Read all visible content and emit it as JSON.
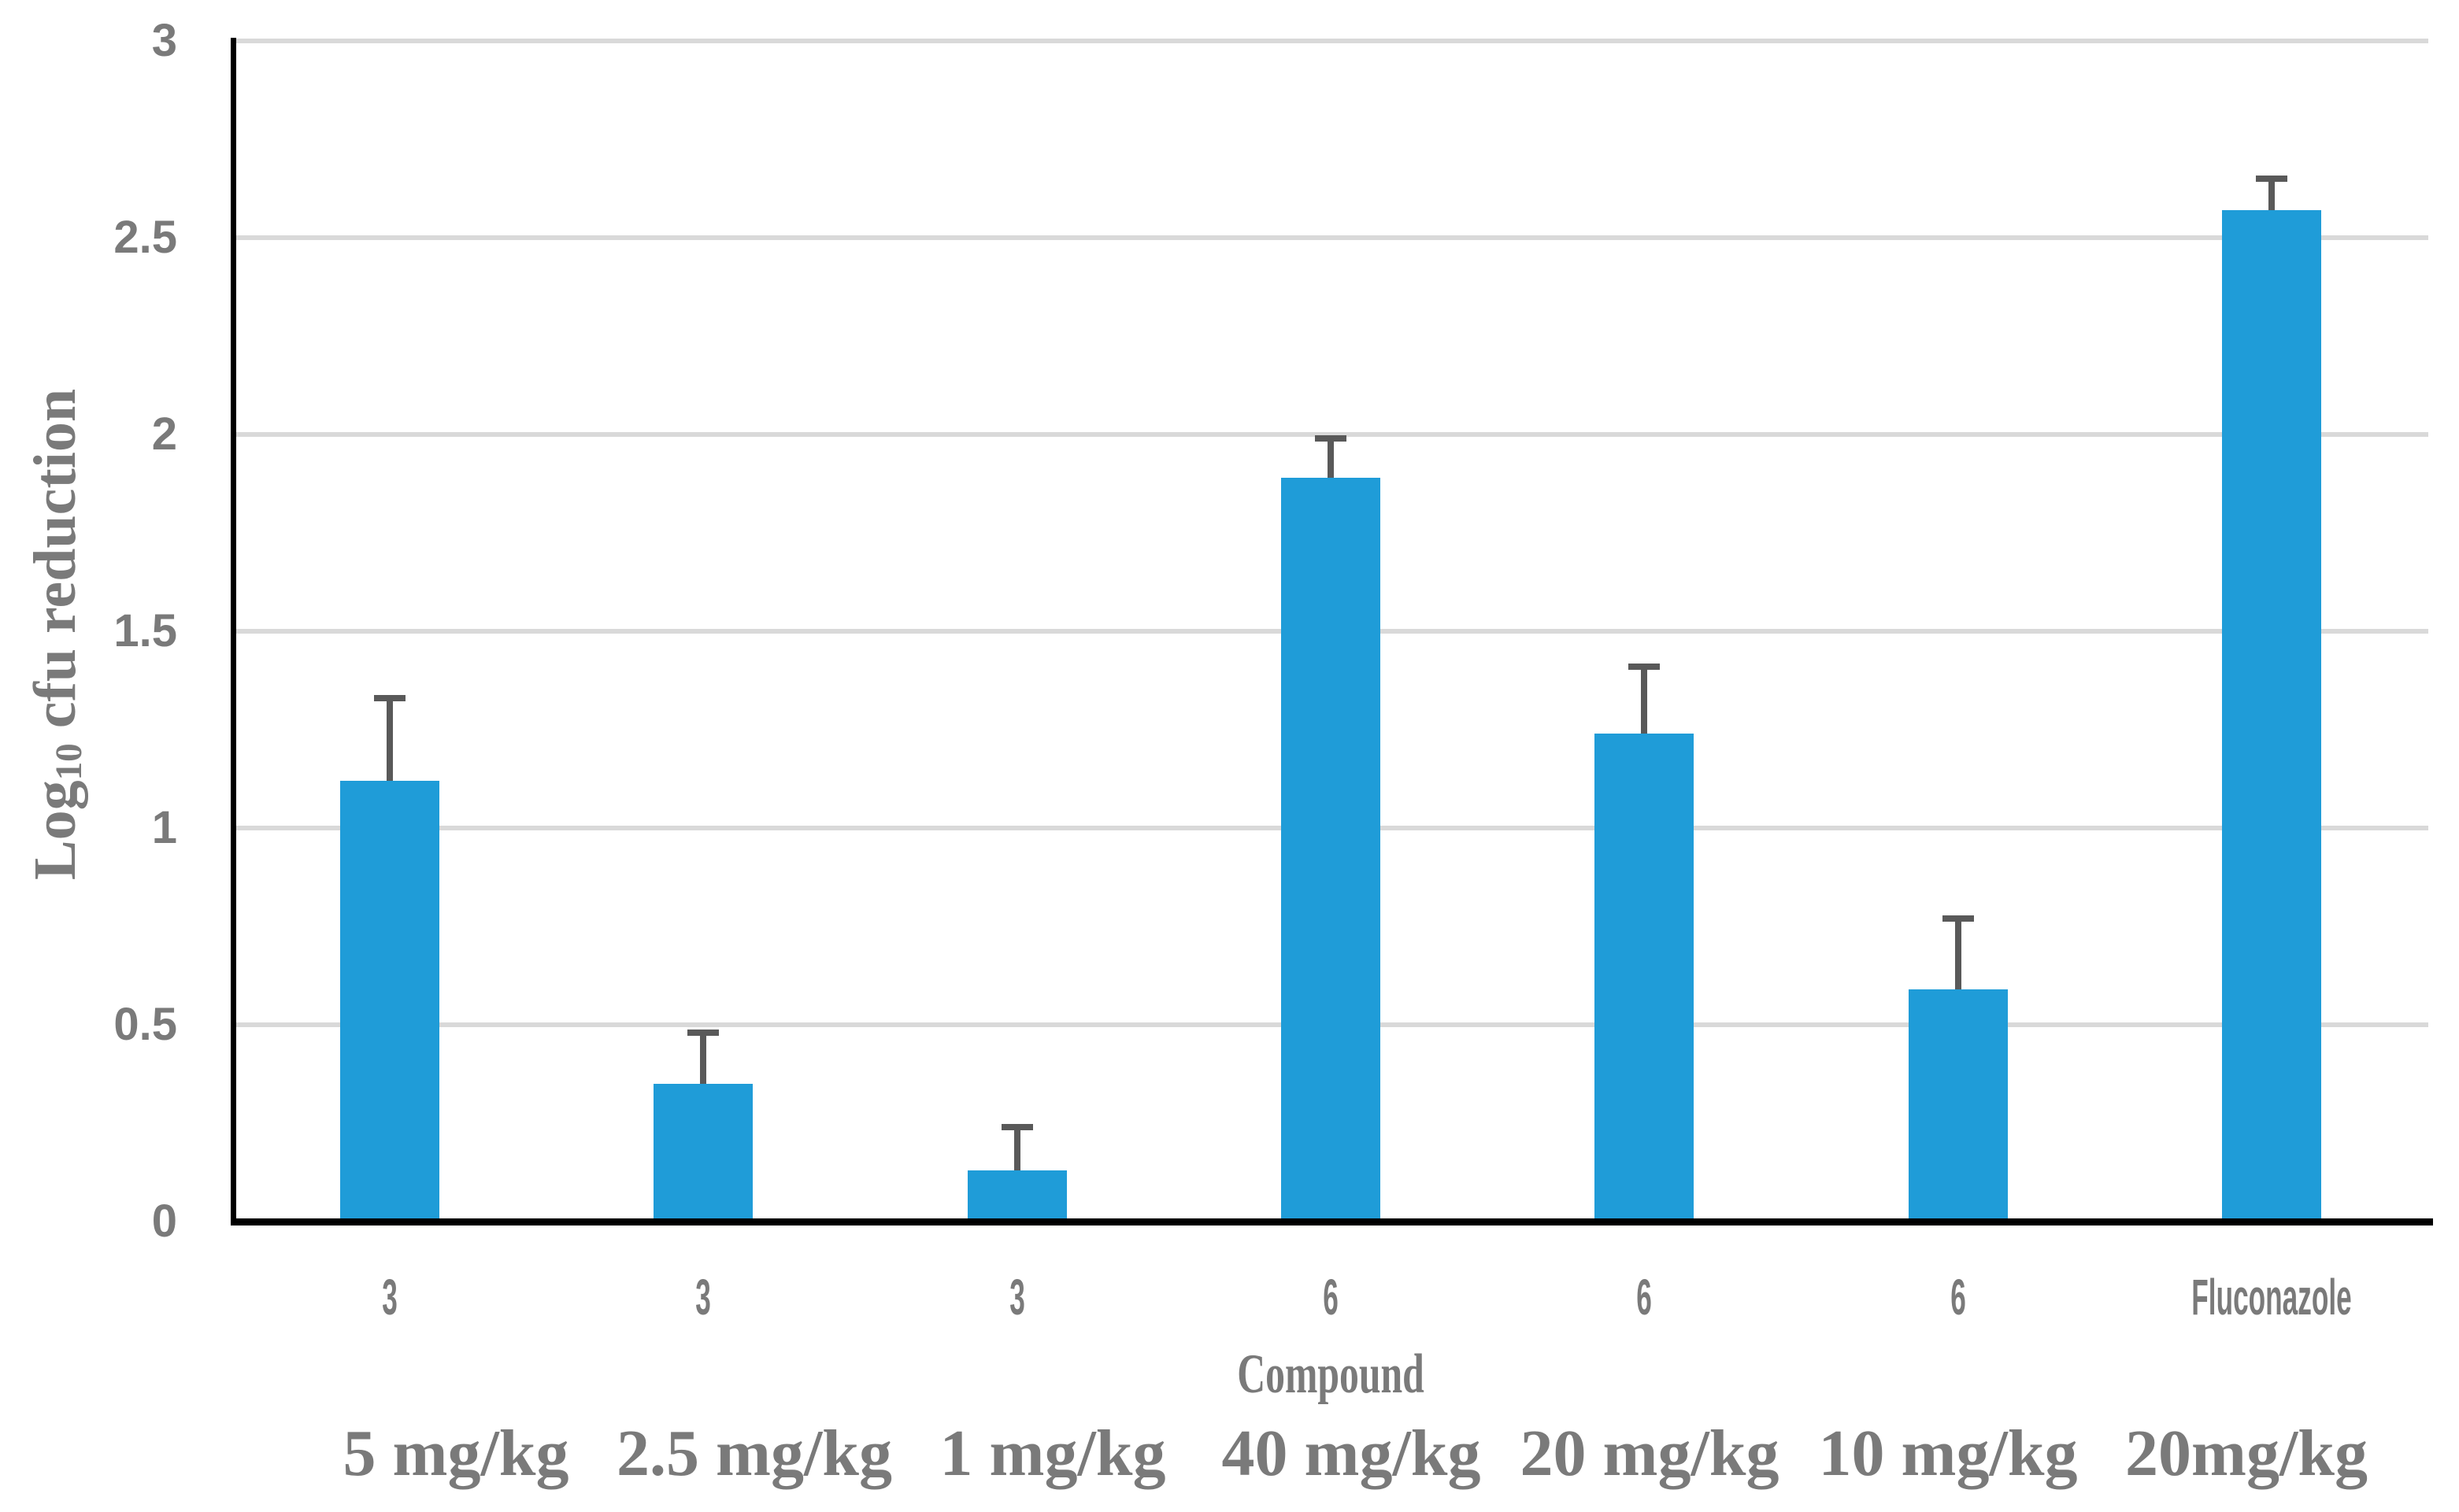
{
  "chart_data": {
    "type": "bar",
    "title": "",
    "xlabel": "Compound",
    "ylabel": "Log10 cfu reduction",
    "ylabel_parts": {
      "prefix": "Log",
      "subscript": "10",
      "suffix": " cfu reduction"
    },
    "categories": [
      "3",
      "3",
      "3",
      "6",
      "6",
      "6",
      "Fluconazole"
    ],
    "dose_labels": [
      "5 mg/kg",
      "2.5 mg/kg",
      "1 mg/kg",
      "40 mg/kg",
      "20 mg/kg",
      "10 mg/kg",
      "20mg/kg"
    ],
    "values": [
      1.12,
      0.35,
      0.13,
      1.89,
      1.24,
      0.59,
      2.57
    ],
    "error_upper": [
      0.21,
      0.13,
      0.11,
      0.1,
      0.17,
      0.18,
      0.08
    ],
    "ylim": [
      0,
      3
    ],
    "ytick_step": 0.5,
    "ytick_labels": [
      "0",
      "0.5",
      "1",
      "1.5",
      "2",
      "2.5",
      "3"
    ],
    "grid": true,
    "legend": false,
    "colors": {
      "bar": "#1F9CD8",
      "error_bar": "#595959",
      "gridline": "#D9D9D9",
      "axis": "#000000",
      "label": "#7A7A7A"
    }
  }
}
